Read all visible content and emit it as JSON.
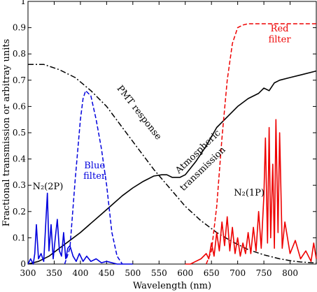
{
  "chart_data": {
    "type": "line",
    "xlabel": "Wavelength (nm)",
    "ylabel": "Fractional transmission or arbitray units",
    "xlim": [
      300,
      850
    ],
    "ylim": [
      0,
      1
    ],
    "x_ticks": [
      300,
      350,
      400,
      450,
      500,
      550,
      600,
      650,
      700,
      750,
      800
    ],
    "y_ticks": [
      0,
      0.1,
      0.2,
      0.3,
      0.4,
      0.5,
      0.6,
      0.7,
      0.8,
      0.9,
      1
    ],
    "x_tick_labels": [
      "300",
      "350",
      "400",
      "450",
      "500",
      "550",
      "600",
      "650",
      "700",
      "750",
      "800"
    ],
    "y_tick_labels": [
      "0",
      "0.1",
      "0.2",
      "0.3",
      "0.4",
      "0.5",
      "0.6",
      "0.7",
      "0.8",
      "0.9",
      "1"
    ],
    "grid": false,
    "colors": {
      "black": "#000000",
      "blue": "#0000dd",
      "red": "#ee0000"
    },
    "series": [
      {
        "style": "solid",
        "color": "#000000",
        "x": [
          300,
          320,
          340,
          360,
          380,
          400,
          420,
          440,
          460,
          480,
          500,
          520,
          540,
          555,
          565,
          575,
          590,
          600,
          620,
          640,
          660,
          680,
          700,
          720,
          740,
          750,
          760,
          770,
          780,
          800,
          820,
          850
        ],
        "y": [
          0,
          0.01,
          0.03,
          0.06,
          0.09,
          0.12,
          0.155,
          0.19,
          0.225,
          0.26,
          0.29,
          0.315,
          0.335,
          0.34,
          0.34,
          0.33,
          0.33,
          0.34,
          0.39,
          0.45,
          0.52,
          0.56,
          0.6,
          0.63,
          0.65,
          0.67,
          0.66,
          0.69,
          0.7,
          0.71,
          0.72,
          0.735
        ]
      },
      {
        "style": "dashdot",
        "color": "#000000",
        "x": [
          300,
          330,
          360,
          390,
          420,
          450,
          480,
          510,
          540,
          570,
          600,
          630,
          660,
          690,
          720,
          750,
          780,
          800,
          820,
          850
        ],
        "y": [
          0.76,
          0.76,
          0.74,
          0.71,
          0.66,
          0.6,
          0.52,
          0.44,
          0.36,
          0.29,
          0.22,
          0.165,
          0.12,
          0.085,
          0.055,
          0.035,
          0.02,
          0.013,
          0.008,
          0.004
        ]
      },
      {
        "style": "dashed",
        "color": "#0000dd",
        "x": [
          370,
          380,
          390,
          400,
          405,
          410,
          420,
          430,
          440,
          450,
          460,
          470,
          480
        ],
        "y": [
          0,
          0.06,
          0.32,
          0.55,
          0.63,
          0.66,
          0.64,
          0.55,
          0.44,
          0.3,
          0.12,
          0.03,
          0
        ]
      },
      {
        "style": "dashed",
        "color": "#ee0000",
        "x": [
          640,
          650,
          660,
          670,
          680,
          690,
          700,
          710,
          720,
          740,
          800,
          850
        ],
        "y": [
          0,
          0.05,
          0.22,
          0.48,
          0.7,
          0.84,
          0.9,
          0.91,
          0.915,
          0.915,
          0.915,
          0.915
        ]
      },
      {
        "style": "solid",
        "color": "#0000dd",
        "x": [
          300,
          305,
          310,
          313,
          316,
          320,
          325,
          330,
          333,
          337,
          340,
          344,
          348,
          352,
          356,
          360,
          364,
          368,
          372,
          376,
          380,
          386,
          392,
          398,
          405,
          412,
          420,
          430,
          440,
          450,
          470,
          500
        ],
        "y": [
          0,
          0.02,
          0.0,
          0.04,
          0.15,
          0.02,
          0.04,
          0.01,
          0.12,
          0.27,
          0.05,
          0.15,
          0.02,
          0.1,
          0.17,
          0.05,
          0.03,
          0.12,
          0.02,
          0.06,
          0.07,
          0.03,
          0.01,
          0.04,
          0.01,
          0.03,
          0.01,
          0.02,
          0.005,
          0.01,
          0,
          0
        ]
      },
      {
        "style": "solid",
        "color": "#ee0000",
        "x": [
          600,
          610,
          620,
          630,
          640,
          645,
          650,
          655,
          660,
          665,
          670,
          675,
          680,
          685,
          690,
          695,
          700,
          705,
          710,
          715,
          720,
          725,
          730,
          735,
          740,
          745,
          750,
          753,
          757,
          760,
          763,
          767,
          770,
          773,
          777,
          780,
          785,
          790,
          800,
          810,
          820,
          830,
          840,
          845,
          850
        ],
        "y": [
          0,
          0,
          0.01,
          0.02,
          0.04,
          0.02,
          0.08,
          0.03,
          0.12,
          0.05,
          0.16,
          0.07,
          0.18,
          0.05,
          0.14,
          0.04,
          0.1,
          0.03,
          0.08,
          0.04,
          0.12,
          0.04,
          0.14,
          0.05,
          0.2,
          0.06,
          0.26,
          0.48,
          0.08,
          0.52,
          0.1,
          0.38,
          0.06,
          0.55,
          0.12,
          0.5,
          0.06,
          0.16,
          0.04,
          0.09,
          0.02,
          0.05,
          0.01,
          0.08,
          0.02
        ]
      }
    ],
    "annotations": [
      {
        "text": "Red",
        "color": "#ee0000",
        "x": 780,
        "y": 0.885
      },
      {
        "text": "filter",
        "color": "#ee0000",
        "x": 780,
        "y": 0.845
      },
      {
        "text": "Blue",
        "color": "#0000dd",
        "x": 427,
        "y": 0.365
      },
      {
        "text": "filter",
        "color": "#0000dd",
        "x": 427,
        "y": 0.325
      },
      {
        "text": "N₂(2P)",
        "color": "#000000",
        "x": 338,
        "y": 0.285
      },
      {
        "text": "N₂(1P)",
        "color": "#000000",
        "x": 722,
        "y": 0.26
      },
      {
        "text": "PMT response",
        "color": "#000000",
        "x": 508,
        "y": 0.57,
        "rotate": 52
      },
      {
        "text": "Atmospheric",
        "color": "#000000",
        "x": 628,
        "y": 0.42,
        "rotate": -44
      },
      {
        "text": "transmission",
        "color": "#000000",
        "x": 637,
        "y": 0.355,
        "rotate": -44
      }
    ]
  }
}
